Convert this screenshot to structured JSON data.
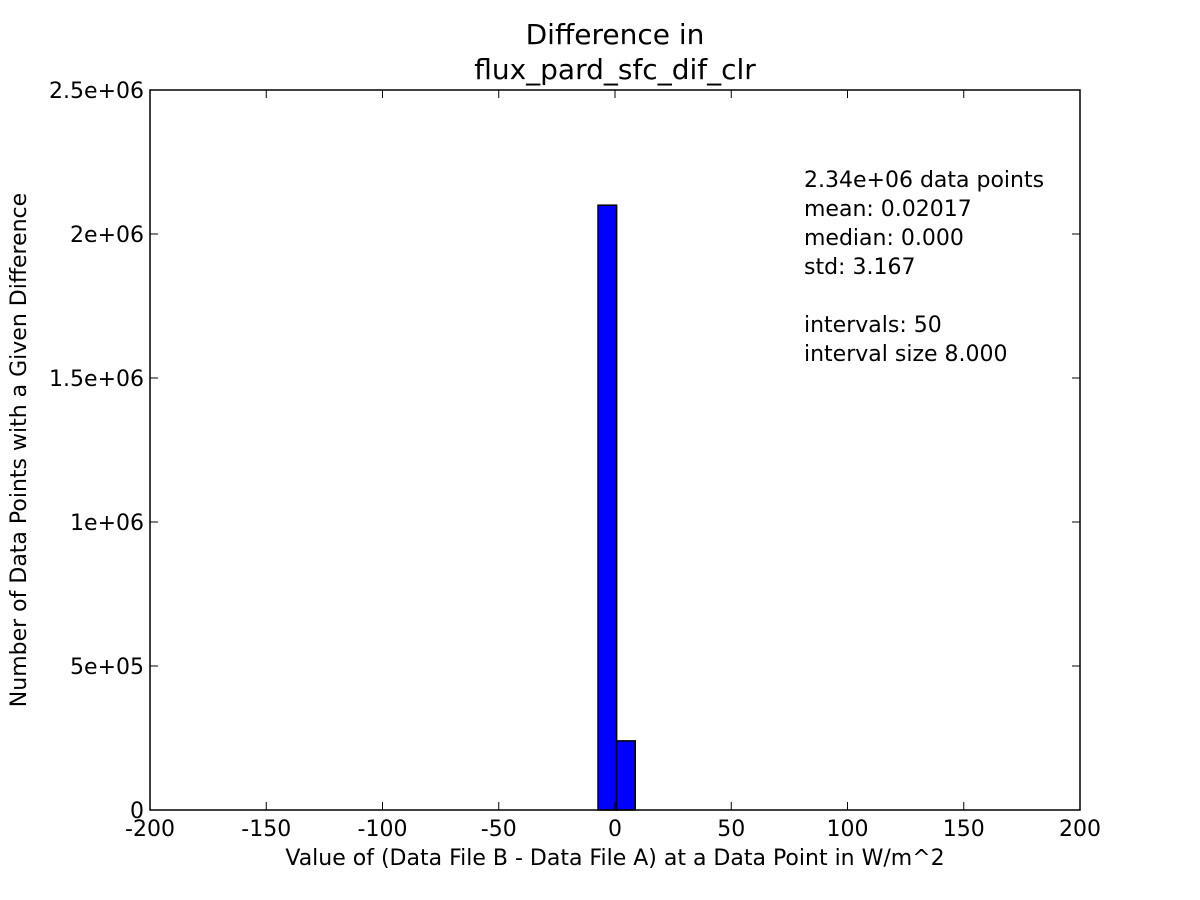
{
  "chart_data": {
    "type": "bar",
    "title_lines": [
      "Difference in",
      "flux_pard_sfc_dif_clr"
    ],
    "xlabel": "Value of (Data File B - Data File A) at a Data Point in W/m^2",
    "ylabel": "Number of Data Points with a Given Difference",
    "xlim": [
      -200,
      200
    ],
    "ylim": [
      0,
      2500000
    ],
    "x_ticks": [
      -200,
      -150,
      -100,
      -50,
      0,
      50,
      100,
      150,
      200
    ],
    "x_tick_labels": [
      "-200",
      "-150",
      "-100",
      "-50",
      "0",
      "50",
      "100",
      "150",
      "200"
    ],
    "y_ticks": [
      0,
      500000,
      1000000,
      1500000,
      2000000,
      2500000
    ],
    "y_tick_labels": [
      "0",
      "5e+05",
      "1e+06",
      "1.5e+06",
      "2e+06",
      "2.5e+06"
    ],
    "bins": [
      {
        "start": -7.3,
        "end": 0.7,
        "value": 2100000
      },
      {
        "start": 0.7,
        "end": 8.7,
        "value": 240000
      }
    ],
    "bar_color": "#0000ff",
    "grid": false,
    "annotation_lines": [
      "2.34e+06 data points",
      "mean: 0.02017",
      "median: 0.000",
      "std: 3.167",
      "",
      "intervals: 50",
      "interval size 8.000"
    ]
  }
}
